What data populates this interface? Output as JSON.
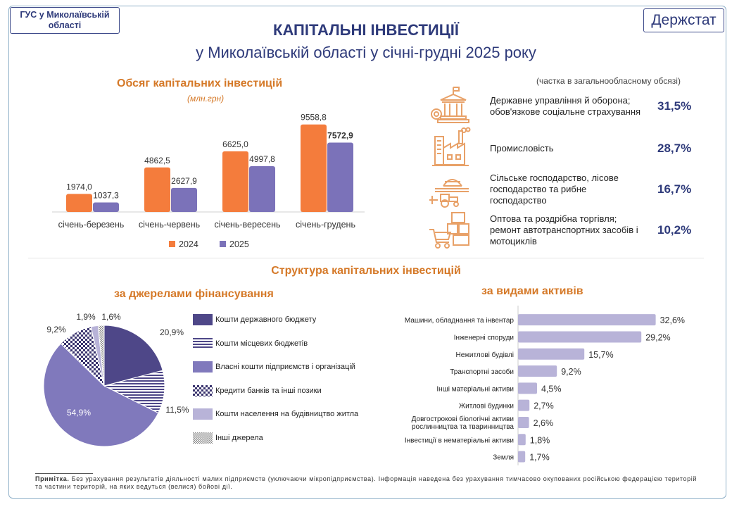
{
  "header": {
    "org_name": "ГУС у Миколаївській області",
    "logo_text": "Держстат",
    "title": "КАПІТАЛЬНІ ІНВЕСТИЦІЇ",
    "subtitle": "у Миколаївській області у січні-грудні 2025 року"
  },
  "colors": {
    "orange": "#f47c3c",
    "purple": "#7b72b9",
    "dark_purple": "#4e4788",
    "light_purple": "#b8b3d8",
    "accent_title": "#d57928",
    "navy": "#2e3a7a",
    "icon": "#e8a168"
  },
  "volume_section": {
    "title": "Обсяг капітальних інвестицій",
    "unit": "(млн.грн)"
  },
  "sectors": {
    "note": "(частка в загальнообласному обсязі)",
    "items": [
      {
        "label": "Державне управління й оборона; обов'язкове соціальне страхування",
        "value": "31,5%",
        "icon": "government-building-icon"
      },
      {
        "label": "Промисловість",
        "value": "28,7%",
        "icon": "factory-icon"
      },
      {
        "label": "Сільське господарство, лісове господарство та рибне господарство",
        "value": "16,7%",
        "icon": "farm-tractor-icon"
      },
      {
        "label": "Оптова та роздрібна торгівля; ремонт автотранспортних засобів і мотоциклів",
        "value": "10,2%",
        "icon": "shopping-cart-icon"
      }
    ]
  },
  "structure_section": {
    "title": "Структура капітальних інвестицій",
    "sources_title": "за джерелами фінансування",
    "assets_title": "за видами активів"
  },
  "chart_data": [
    {
      "type": "bar",
      "title": "Обсяг капітальних інвестицій",
      "ylabel": "(млн.грн)",
      "categories": [
        "січень-березень",
        "січень-червень",
        "січень-вересень",
        "січень-грудень"
      ],
      "series": [
        {
          "name": "2024",
          "color": "#f47c3c",
          "values": [
            1974.0,
            4862.5,
            6625.0,
            9558.8
          ],
          "labels": [
            "1974,0",
            "4862,5",
            "6625,0",
            "9558,8"
          ]
        },
        {
          "name": "2025",
          "color": "#7b72b9",
          "values": [
            1037.3,
            2627.9,
            4997.8,
            7572.9
          ],
          "labels": [
            "1037,3",
            "2627,9",
            "4997,8",
            "7572,9"
          ]
        }
      ],
      "ylim": [
        0,
        10000
      ],
      "legend_position": "bottom"
    },
    {
      "type": "pie",
      "title": "за джерелами фінансування",
      "slices": [
        {
          "name": "Кошти державного бюджету",
          "value": 20.9,
          "label": "20,9%",
          "color": "#4e4788",
          "pattern": "solid"
        },
        {
          "name": "Кошти місцевих бюджетів",
          "value": 11.5,
          "label": "11,5%",
          "color": "#4e4788",
          "pattern": "horizontal-lines"
        },
        {
          "name": "Власні кошти підприємств і організацій",
          "value": 54.9,
          "label": "54,9%",
          "color": "#8079bc",
          "pattern": "solid"
        },
        {
          "name": "Кредити банків та інші позики",
          "value": 9.2,
          "label": "9,2%",
          "color": "#3a346e",
          "pattern": "checker"
        },
        {
          "name": "Кошти населення на будівництво житла",
          "value": 1.9,
          "label": "1,9%",
          "color": "#b8b3d8",
          "pattern": "solid"
        },
        {
          "name": "Інші джерела",
          "value": 1.6,
          "label": "1,6%",
          "color": "#8a8a8a",
          "pattern": "fine-checker"
        }
      ],
      "legend_position": "right"
    },
    {
      "type": "bar",
      "orientation": "horizontal",
      "title": "за видами активів",
      "categories": [
        "Машини, обладнання та інвентар",
        "Інженерні споруди",
        "Нежитлові будівлі",
        "Транспортні засоби",
        "Інші матеріальні активи",
        "Житлові будинки",
        "Довгострокові біологічні активи рослинництва та тваринництва",
        "Інвестиції в нематеріальні активи",
        "Земля"
      ],
      "values": [
        32.6,
        29.2,
        15.7,
        9.2,
        4.5,
        2.7,
        2.6,
        1.8,
        1.7
      ],
      "labels": [
        "32,6%",
        "29,2%",
        "15,7%",
        "9,2%",
        "4,5%",
        "2,7%",
        "2,6%",
        "1,8%",
        "1,7%"
      ],
      "color": "#b8b3d8",
      "xlim": [
        0,
        35
      ]
    }
  ],
  "footer": {
    "note_label": "Примітка.",
    "note_text": " Без урахування результатів діяльності малих підприємств (уключаючи мікропідприємства). Інформація наведена без урахування тимчасово окупованих російською федерацією територій та частини територій, на яких ведуться (велися) бойові дії."
  }
}
